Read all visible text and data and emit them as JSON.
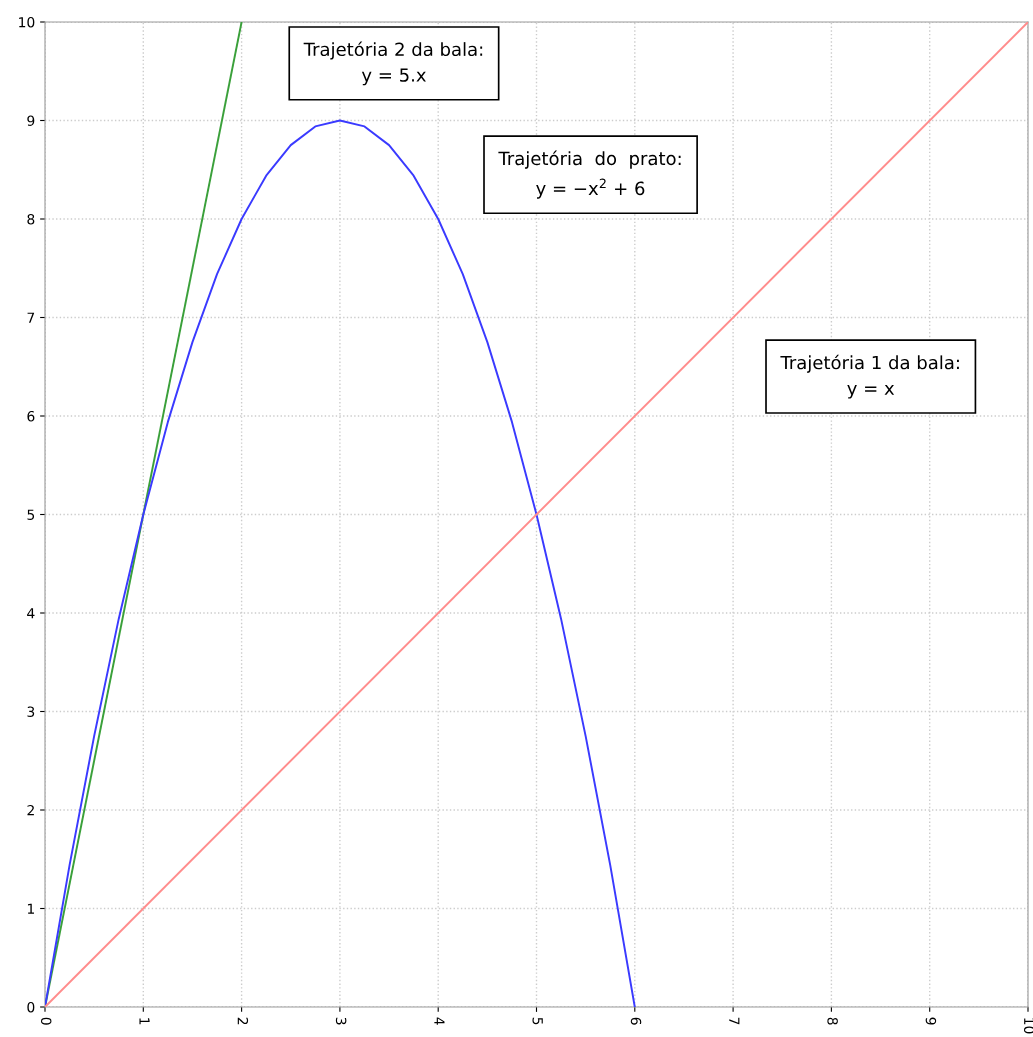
{
  "chart_data": {
    "type": "line",
    "series": [
      {
        "color": "#3aa03a",
        "x": [
          0,
          2
        ],
        "values": [
          0,
          10
        ]
      },
      {
        "color": "#3a3aff",
        "x": [
          0,
          0.25,
          0.5,
          0.75,
          1,
          1.25,
          1.5,
          1.75,
          2,
          2.25,
          2.5,
          2.75,
          3,
          3.25,
          3.5,
          3.75,
          4,
          4.25,
          4.5,
          4.75,
          5,
          5.25,
          5.5,
          5.75,
          6
        ],
        "values": [
          0,
          1.44,
          2.75,
          3.94,
          5,
          5.94,
          6.75,
          7.44,
          8,
          8.44,
          8.75,
          8.94,
          9,
          8.94,
          8.75,
          8.44,
          8,
          7.44,
          6.75,
          5.94,
          5,
          3.94,
          2.75,
          1.44,
          0
        ]
      },
      {
        "color": "#ff8c8c",
        "x": [
          0,
          10
        ],
        "values": [
          0,
          10
        ]
      }
    ],
    "xlim": [
      0,
      10
    ],
    "ylim": [
      0,
      10
    ],
    "xticks": [
      0,
      1,
      2,
      3,
      4,
      5,
      6,
      7,
      8,
      9,
      10
    ],
    "yticks": [
      0,
      1,
      2,
      3,
      4,
      5,
      6,
      7,
      8,
      9,
      10
    ],
    "grid": true,
    "marker": "none",
    "line_style": "solid",
    "annotations": [
      "Trajetória 2 da bala:\ny = 5.x",
      "Trajetória  do  prato:\ny = −x$^{2}$ + 6",
      "Trajetória 1 da bala:\ny = x"
    ]
  }
}
